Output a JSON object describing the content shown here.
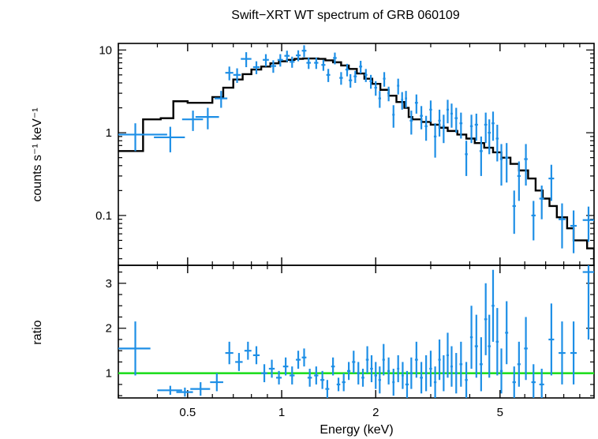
{
  "chart_data": [
    {
      "type": "scatter",
      "title": "Swift−XRT WT spectrum of GRB 060109",
      "ylabel": "counts s⁻¹ keV⁻¹",
      "xscale": "log",
      "yscale": "log",
      "xlim": [
        0.3,
        10
      ],
      "ylim": [
        0.025,
        12
      ],
      "yticks": [
        "0.1",
        "1",
        "10"
      ],
      "colors": {
        "data": "#1e8fe6",
        "model": "#000000"
      },
      "series": [
        {
          "points": [
            [
              0.34,
              0.95,
              0.09,
              0.35
            ],
            [
              0.44,
              0.88,
              0.05,
              0.3
            ],
            [
              0.52,
              1.45,
              0.04,
              0.4
            ],
            [
              0.58,
              1.55,
              0.05,
              0.45
            ],
            [
              0.64,
              2.6,
              0.03,
              0.6
            ],
            [
              0.68,
              5.3,
              0.02,
              1.0
            ],
            [
              0.72,
              5.0,
              0.02,
              1.0
            ],
            [
              0.77,
              7.8,
              0.03,
              1.6
            ],
            [
              0.83,
              6.2,
              0.02,
              1.1
            ],
            [
              0.89,
              7.6,
              0.02,
              1.3
            ],
            [
              0.94,
              6.4,
              0.02,
              1.1
            ],
            [
              0.99,
              7.6,
              0.02,
              1.3
            ],
            [
              1.04,
              8.5,
              0.02,
              1.3
            ],
            [
              1.08,
              7.2,
              0.02,
              1.1
            ],
            [
              1.13,
              8.6,
              0.02,
              1.3
            ],
            [
              1.18,
              9.8,
              0.02,
              1.6
            ],
            [
              1.22,
              7.0,
              0.02,
              1.1
            ],
            [
              1.29,
              7.0,
              0.02,
              1.1
            ],
            [
              1.36,
              6.6,
              0.02,
              1.0
            ],
            [
              1.41,
              5.0,
              0.02,
              0.9
            ],
            [
              1.48,
              8.0,
              0.02,
              1.3
            ],
            [
              1.55,
              4.6,
              0.02,
              0.8
            ],
            [
              1.62,
              5.8,
              0.02,
              1.0
            ],
            [
              1.66,
              4.3,
              0.02,
              0.8
            ],
            [
              1.72,
              4.8,
              0.02,
              0.8
            ],
            [
              1.79,
              6.3,
              0.02,
              1.1
            ],
            [
              1.86,
              5.0,
              0.02,
              0.9
            ],
            [
              1.93,
              4.2,
              0.02,
              0.8
            ],
            [
              2.0,
              3.5,
              0.02,
              0.7
            ],
            [
              2.06,
              2.6,
              0.02,
              0.6
            ],
            [
              2.13,
              4.5,
              0.02,
              0.9
            ],
            [
              2.2,
              3.0,
              0.02,
              0.6
            ],
            [
              2.28,
              1.65,
              0.02,
              0.5
            ],
            [
              2.36,
              3.7,
              0.02,
              0.8
            ],
            [
              2.43,
              2.5,
              0.02,
              0.6
            ],
            [
              2.5,
              2.6,
              0.02,
              0.6
            ],
            [
              2.6,
              1.4,
              0.03,
              0.45
            ],
            [
              2.7,
              2.3,
              0.03,
              0.6
            ],
            [
              2.8,
              1.6,
              0.03,
              0.5
            ],
            [
              2.9,
              1.2,
              0.03,
              0.4
            ],
            [
              3.0,
              1.9,
              0.03,
              0.55
            ],
            [
              3.1,
              0.9,
              0.03,
              0.4
            ],
            [
              3.2,
              1.4,
              0.03,
              0.5
            ],
            [
              3.3,
              1.2,
              0.03,
              0.45
            ],
            [
              3.4,
              1.9,
              0.03,
              0.6
            ],
            [
              3.5,
              1.7,
              0.03,
              0.55
            ],
            [
              3.62,
              1.5,
              0.04,
              0.5
            ],
            [
              3.75,
              1.3,
              0.04,
              0.45
            ],
            [
              3.9,
              0.55,
              0.04,
              0.25
            ],
            [
              4.05,
              1.2,
              0.04,
              0.45
            ],
            [
              4.2,
              1.25,
              0.05,
              0.45
            ],
            [
              4.35,
              0.6,
              0.05,
              0.3
            ],
            [
              4.5,
              1.25,
              0.05,
              0.5
            ],
            [
              4.62,
              1.0,
              0.05,
              0.45
            ],
            [
              4.75,
              1.3,
              0.05,
              0.5
            ],
            [
              4.9,
              0.85,
              0.05,
              0.4
            ],
            [
              5.05,
              0.48,
              0.05,
              0.25
            ],
            [
              5.25,
              0.5,
              0.06,
              0.25
            ],
            [
              5.55,
              0.13,
              0.07,
              0.07
            ],
            [
              5.75,
              0.3,
              0.07,
              0.15
            ],
            [
              6.05,
              0.48,
              0.08,
              0.25
            ],
            [
              6.4,
              0.1,
              0.1,
              0.05
            ],
            [
              6.8,
              0.16,
              0.12,
              0.07
            ],
            [
              7.3,
              0.28,
              0.15,
              0.13
            ],
            [
              7.9,
              0.09,
              0.2,
              0.05
            ],
            [
              8.6,
              0.075,
              0.2,
              0.04
            ],
            [
              9.6,
              0.088,
              0.4,
              0.04
            ]
          ]
        }
      ],
      "model": [
        [
          0.3,
          0.6
        ],
        [
          0.36,
          1.45
        ],
        [
          0.41,
          1.5
        ],
        [
          0.45,
          2.4
        ],
        [
          0.5,
          2.3
        ],
        [
          0.55,
          2.3
        ],
        [
          0.6,
          2.7
        ],
        [
          0.65,
          3.5
        ],
        [
          0.7,
          4.4
        ],
        [
          0.75,
          5.1
        ],
        [
          0.8,
          5.8
        ],
        [
          0.86,
          6.3
        ],
        [
          0.92,
          6.9
        ],
        [
          0.98,
          7.3
        ],
        [
          1.04,
          7.6
        ],
        [
          1.1,
          7.8
        ],
        [
          1.17,
          7.9
        ],
        [
          1.24,
          7.9
        ],
        [
          1.31,
          7.8
        ],
        [
          1.38,
          7.5
        ],
        [
          1.46,
          7.1
        ],
        [
          1.55,
          6.5
        ],
        [
          1.64,
          5.9
        ],
        [
          1.74,
          5.2
        ],
        [
          1.84,
          4.5
        ],
        [
          1.95,
          3.9
        ],
        [
          2.07,
          3.3
        ],
        [
          2.2,
          2.8
        ],
        [
          2.33,
          2.35
        ],
        [
          2.47,
          2.0
        ],
        [
          2.55,
          1.55
        ],
        [
          2.62,
          1.45
        ],
        [
          2.8,
          1.35
        ],
        [
          3.0,
          1.25
        ],
        [
          3.2,
          1.15
        ],
        [
          3.4,
          1.05
        ],
        [
          3.65,
          0.95
        ],
        [
          3.9,
          0.85
        ],
        [
          4.15,
          0.75
        ],
        [
          4.45,
          0.66
        ],
        [
          4.75,
          0.58
        ],
        [
          5.05,
          0.5
        ],
        [
          5.4,
          0.42
        ],
        [
          5.75,
          0.35
        ],
        [
          6.15,
          0.28
        ],
        [
          6.5,
          0.2
        ],
        [
          6.85,
          0.16
        ],
        [
          7.2,
          0.13
        ],
        [
          7.6,
          0.095
        ],
        [
          8.2,
          0.07
        ],
        [
          8.6,
          0.05
        ],
        [
          9.5,
          0.04
        ],
        [
          10,
          0.025
        ]
      ]
    },
    {
      "type": "scatter",
      "xlabel": "Energy (keV)",
      "ylabel": "ratio",
      "xscale": "log",
      "xlim": [
        0.3,
        10
      ],
      "ylim": [
        0.45,
        3.4
      ],
      "xticks": [
        "0.5",
        "1",
        "2",
        "5"
      ],
      "yticks": [
        "1",
        "2",
        "3"
      ],
      "reference_line": 1,
      "colors": {
        "data": "#1e8fe6",
        "reference": "#22dd22"
      },
      "series": [
        {
          "points": [
            [
              0.34,
              1.55,
              0.04,
              0.6
            ],
            [
              0.44,
              0.62,
              0.04,
              0.1
            ],
            [
              0.49,
              0.58,
              0.03,
              0.1
            ],
            [
              0.55,
              0.65,
              0.04,
              0.15
            ],
            [
              0.62,
              0.8,
              0.03,
              0.2
            ],
            [
              0.68,
              1.45,
              0.02,
              0.25
            ],
            [
              0.73,
              1.25,
              0.02,
              0.2
            ],
            [
              0.78,
              1.5,
              0.02,
              0.2
            ],
            [
              0.83,
              1.4,
              0.02,
              0.2
            ],
            [
              0.88,
              1.0,
              0.02,
              0.2
            ],
            [
              0.93,
              1.1,
              0.02,
              0.2
            ],
            [
              0.98,
              0.9,
              0.02,
              0.15
            ],
            [
              1.03,
              1.15,
              0.02,
              0.2
            ],
            [
              1.08,
              0.95,
              0.02,
              0.2
            ],
            [
              1.13,
              1.3,
              0.02,
              0.2
            ],
            [
              1.18,
              1.35,
              0.02,
              0.2
            ],
            [
              1.23,
              0.9,
              0.02,
              0.2
            ],
            [
              1.29,
              0.95,
              0.02,
              0.2
            ],
            [
              1.35,
              0.85,
              0.02,
              0.2
            ],
            [
              1.4,
              0.65,
              0.02,
              0.2
            ],
            [
              1.46,
              1.15,
              0.02,
              0.2
            ],
            [
              1.52,
              0.75,
              0.02,
              0.15
            ],
            [
              1.58,
              0.8,
              0.02,
              0.2
            ],
            [
              1.64,
              1.05,
              0.02,
              0.2
            ],
            [
              1.7,
              1.25,
              0.02,
              0.25
            ],
            [
              1.76,
              1.0,
              0.02,
              0.25
            ],
            [
              1.82,
              0.9,
              0.02,
              0.2
            ],
            [
              1.88,
              1.3,
              0.02,
              0.3
            ],
            [
              1.94,
              1.1,
              0.02,
              0.3
            ],
            [
              2.0,
              0.95,
              0.02,
              0.3
            ],
            [
              2.06,
              0.85,
              0.02,
              0.3
            ],
            [
              2.12,
              1.3,
              0.02,
              0.35
            ],
            [
              2.2,
              1.05,
              0.02,
              0.3
            ],
            [
              2.28,
              0.8,
              0.02,
              0.3
            ],
            [
              2.36,
              1.1,
              0.02,
              0.3
            ],
            [
              2.44,
              0.95,
              0.02,
              0.3
            ],
            [
              2.52,
              0.75,
              0.03,
              0.3
            ],
            [
              2.6,
              1.0,
              0.03,
              0.35
            ],
            [
              2.7,
              1.3,
              0.03,
              0.4
            ],
            [
              2.8,
              0.9,
              0.03,
              0.35
            ],
            [
              2.9,
              1.0,
              0.03,
              0.4
            ],
            [
              3.0,
              1.1,
              0.03,
              0.4
            ],
            [
              3.1,
              0.8,
              0.03,
              0.35
            ],
            [
              3.2,
              1.3,
              0.03,
              0.45
            ],
            [
              3.3,
              1.0,
              0.03,
              0.4
            ],
            [
              3.4,
              1.4,
              0.03,
              0.5
            ],
            [
              3.5,
              1.15,
              0.03,
              0.45
            ],
            [
              3.62,
              1.0,
              0.04,
              0.45
            ],
            [
              3.75,
              1.2,
              0.04,
              0.5
            ],
            [
              3.9,
              0.85,
              0.04,
              0.4
            ],
            [
              4.05,
              1.8,
              0.04,
              0.7
            ],
            [
              4.2,
              1.6,
              0.05,
              0.7
            ],
            [
              4.35,
              1.2,
              0.05,
              0.6
            ],
            [
              4.5,
              2.2,
              0.05,
              0.8
            ],
            [
              4.62,
              1.6,
              0.05,
              0.7
            ],
            [
              4.75,
              2.5,
              0.05,
              0.8
            ],
            [
              4.9,
              1.7,
              0.05,
              0.75
            ],
            [
              5.05,
              1.05,
              0.05,
              0.5
            ],
            [
              5.25,
              1.9,
              0.06,
              0.7
            ],
            [
              5.55,
              0.8,
              0.07,
              0.35
            ],
            [
              5.75,
              1.2,
              0.07,
              0.5
            ],
            [
              6.05,
              1.55,
              0.08,
              0.7
            ],
            [
              6.4,
              0.8,
              0.1,
              0.4
            ],
            [
              6.8,
              0.75,
              0.12,
              0.35
            ],
            [
              7.3,
              1.75,
              0.15,
              0.8
            ],
            [
              7.9,
              1.45,
              0.2,
              0.7
            ],
            [
              8.6,
              1.45,
              0.2,
              0.7
            ],
            [
              9.6,
              3.25,
              0.4,
              1.5
            ]
          ]
        }
      ]
    }
  ]
}
